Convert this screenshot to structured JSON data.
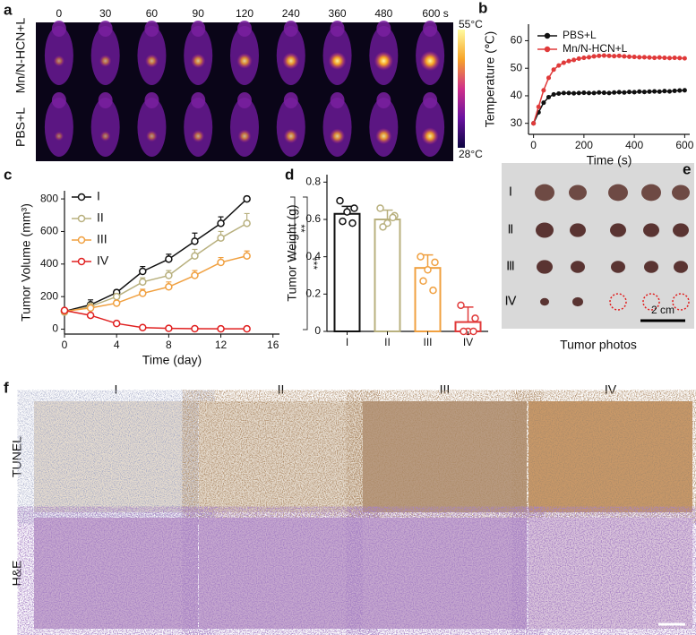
{
  "panel_labels": [
    "a",
    "b",
    "c",
    "d",
    "e",
    "f"
  ],
  "thermal": {
    "times": [
      "0",
      "30",
      "60",
      "90",
      "120",
      "240",
      "360",
      "480",
      "600 s"
    ],
    "rows": [
      "Mn/N-HCN+L",
      "PBS+L"
    ],
    "colorbar": {
      "max": "55°C",
      "min": "28°C"
    }
  },
  "chart_data": [
    {
      "type": "line",
      "xlabel": "Time (s)",
      "ylabel": "Temperature (℃)",
      "marker": "dot",
      "legend": "upper left",
      "x": [
        0,
        20,
        40,
        60,
        80,
        100,
        120,
        140,
        160,
        180,
        200,
        220,
        240,
        260,
        280,
        300,
        320,
        340,
        360,
        380,
        400,
        420,
        440,
        460,
        480,
        500,
        520,
        540,
        560,
        580,
        600
      ],
      "xlim": [
        -20,
        620
      ],
      "xticks": [
        0,
        200,
        400,
        600
      ],
      "ylim": [
        26,
        66
      ],
      "yticks": [
        30,
        40,
        50,
        60
      ],
      "series": [
        {
          "name": "PBS+L",
          "color": "#111111",
          "values": [
            30,
            34,
            37.5,
            39.5,
            40.5,
            40.8,
            41,
            41,
            40.9,
            41,
            41.1,
            41,
            41,
            41.2,
            41.1,
            41,
            41.2,
            41.3,
            41.2,
            41.4,
            41.3,
            41.5,
            41.4,
            41.5,
            41.6,
            41.5,
            41.7,
            41.6,
            41.8,
            41.9,
            42
          ]
        },
        {
          "name": "Mn/N-HCN+L",
          "color": "#e03a3a",
          "values": [
            30,
            36,
            42,
            46.5,
            49.5,
            51,
            52,
            52.6,
            53,
            53.5,
            53.8,
            54,
            54.3,
            54.5,
            54.6,
            54.5,
            54.4,
            54.5,
            54.3,
            54.2,
            54.1,
            54,
            54,
            53.9,
            53.8,
            53.9,
            53.8,
            53.7,
            53.8,
            53.7,
            53.6
          ]
        }
      ]
    },
    {
      "type": "line",
      "xlabel": "Time (day)",
      "ylabel": "Tumor Volume (mm³)",
      "marker": "open-circle",
      "legend": "upper left",
      "x": [
        0,
        2,
        4,
        6,
        8,
        10,
        12,
        14
      ],
      "xlim": [
        0,
        16.5
      ],
      "xticks": [
        0,
        4,
        8,
        12,
        16
      ],
      "ylim": [
        -30,
        850
      ],
      "yticks": [
        0,
        200,
        400,
        600,
        800
      ],
      "annotations": [
        "**",
        "***"
      ],
      "series": [
        {
          "name": "I",
          "color": "#111111",
          "values": [
            110,
            150,
            225,
            355,
            430,
            540,
            650,
            800
          ],
          "errors": [
            15,
            30,
            15,
            30,
            30,
            50,
            40,
            15
          ]
        },
        {
          "name": "II",
          "color": "#b8b07e",
          "values": [
            105,
            140,
            200,
            290,
            330,
            450,
            560,
            650
          ],
          "errors": [
            10,
            20,
            15,
            25,
            30,
            40,
            40,
            60
          ]
        },
        {
          "name": "III",
          "color": "#f0a040",
          "values": [
            110,
            130,
            160,
            220,
            260,
            330,
            410,
            450
          ],
          "errors": [
            10,
            15,
            15,
            25,
            30,
            30,
            30,
            30
          ]
        },
        {
          "name": "IV",
          "color": "#e02020",
          "values": [
            115,
            85,
            35,
            10,
            5,
            3,
            2,
            2
          ],
          "errors": [
            10,
            10,
            8,
            5,
            3,
            2,
            2,
            2
          ]
        }
      ]
    },
    {
      "type": "bar",
      "ylabel": "Tumor Weight (g)",
      "categories": [
        "I",
        "II",
        "III",
        "IV"
      ],
      "values": [
        0.63,
        0.6,
        0.34,
        0.05
      ],
      "errors": [
        0.04,
        0.05,
        0.07,
        0.08
      ],
      "points": [
        [
          0.7,
          0.66,
          0.64,
          0.59,
          0.58
        ],
        [
          0.66,
          0.62,
          0.58,
          0.56,
          0.61
        ],
        [
          0.4,
          0.37,
          0.33,
          0.27,
          0.22
        ],
        [
          0.14,
          0.07,
          0,
          0,
          0
        ]
      ],
      "colors": [
        "#111111",
        "#b8b07e",
        "#f0a040",
        "#e03a3a"
      ],
      "ylim": [
        0,
        0.84
      ],
      "yticks": [
        0,
        0.2,
        0.4,
        0.6,
        0.8
      ]
    }
  ],
  "photos": {
    "rows": [
      "Ⅰ",
      "Ⅱ",
      "Ⅲ",
      "Ⅳ"
    ],
    "scale_bar": "2 cm",
    "caption": "Tumor photos"
  },
  "histology": {
    "columns": [
      "I",
      "II",
      "III",
      "IV"
    ],
    "rows": [
      "TUNEL",
      "H&E"
    ]
  }
}
